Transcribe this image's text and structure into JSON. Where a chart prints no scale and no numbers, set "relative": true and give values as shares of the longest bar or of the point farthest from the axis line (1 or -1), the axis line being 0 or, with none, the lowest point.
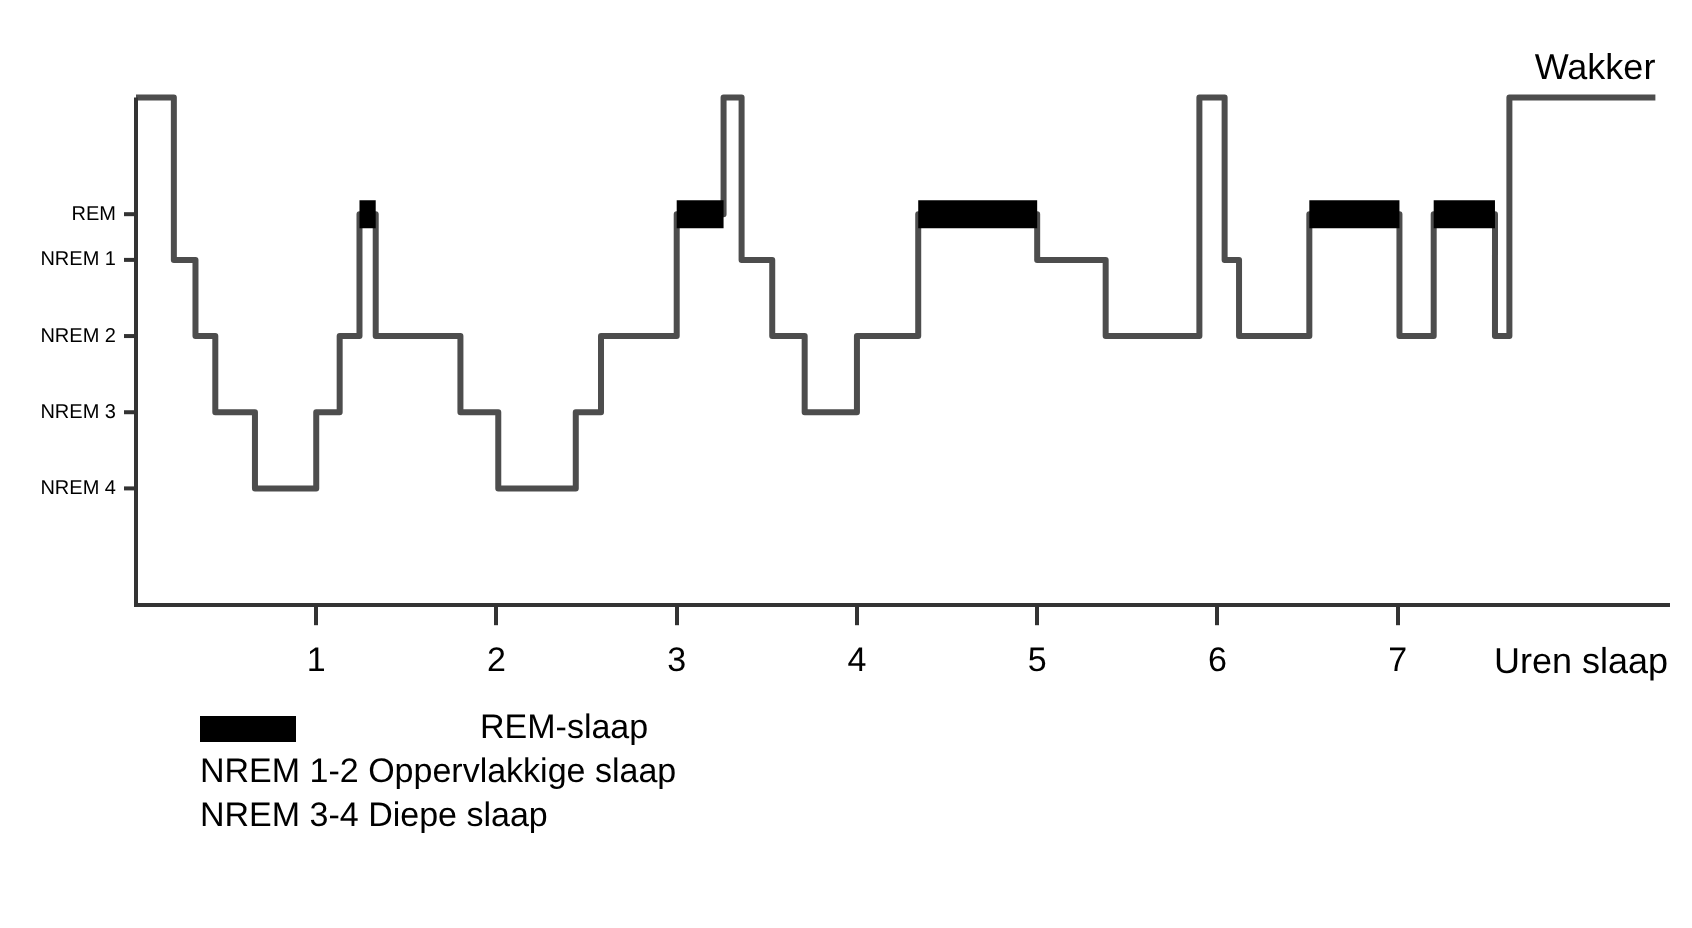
{
  "chart_data": {
    "type": "step",
    "xlabel": "Uren slaap",
    "relative": true,
    "x": [
      0,
      0.21,
      0.33,
      0.44,
      0.66,
      1.0,
      1.13,
      1.24,
      1.33,
      1.8,
      2.01,
      2.44,
      2.58,
      3.0,
      3.26,
      3.36,
      3.53,
      3.71,
      4.0,
      4.34,
      5.0,
      5.38,
      5.9,
      6.04,
      6.12,
      6.51,
      7.01,
      7.2,
      7.54,
      7.62,
      8.43
    ],
    "series": [
      {
        "color": "#4d4d4d",
        "values": [
          1,
          0.68,
          0.53,
          0.38,
          0.23,
          0.38,
          0.53,
          0.77,
          0.53,
          0.38,
          0.23,
          0.38,
          0.53,
          0.77,
          1,
          0.68,
          0.53,
          0.38,
          0.53,
          0.77,
          0.68,
          0.53,
          1,
          0.68,
          0.53,
          0.77,
          0.53,
          0.77,
          0.53,
          1,
          1
        ]
      },
      {
        "name": "REM-slaap",
        "color": "#000000",
        "x": [
          1.24,
          1.33,
          3.0,
          3.26,
          4.34,
          5.0,
          6.51,
          7.01,
          7.2,
          7.54
        ],
        "values": [
          0.77,
          0.77,
          0.77,
          0.77,
          0.77,
          0.77,
          0.77,
          0.77,
          0.77,
          0.77
        ]
      }
    ],
    "xlim": [
      0,
      8.5
    ],
    "xticks": [
      1,
      2,
      3,
      4,
      5,
      6,
      7
    ],
    "legend": "bottom",
    "annotations": [
      {
        "text": "Wakker",
        "x": 8.43,
        "y": 1
      },
      "REM",
      "NREM 1",
      "NREM 2",
      "NREM 3",
      "NREM 4",
      "NREM 1-2 Oppervlakkige slaap",
      "NREM 3-4 Diepe slaap"
    ]
  }
}
